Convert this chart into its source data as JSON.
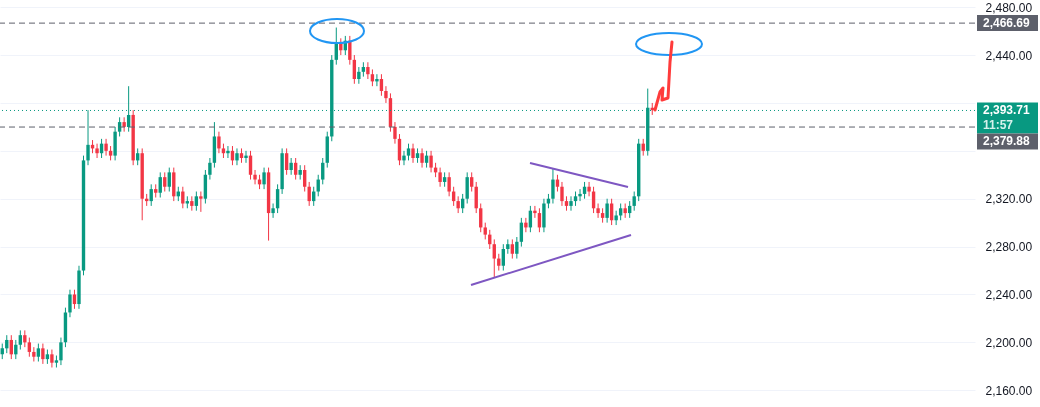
{
  "chart_data": {
    "type": "candlestick",
    "categories": [
      null,
      null,
      null,
      null,
      null,
      null,
      null,
      null,
      null,
      null,
      null,
      null,
      null,
      null,
      null,
      null,
      null,
      null,
      null,
      null,
      null,
      null,
      null,
      null,
      null,
      null,
      null,
      null,
      null,
      null,
      null,
      null,
      null,
      null,
      null,
      null,
      null,
      null,
      null,
      null,
      null,
      null,
      null,
      null,
      null,
      null,
      null,
      null,
      null,
      null,
      null,
      null,
      null,
      null,
      null,
      null,
      null,
      null,
      null,
      null,
      null,
      null,
      null,
      null,
      null,
      null,
      null,
      null,
      null,
      null,
      null,
      null,
      null,
      null,
      null,
      null,
      null,
      null,
      null,
      null,
      null,
      null,
      null,
      null,
      null,
      null,
      null,
      null,
      null,
      null,
      null,
      null,
      null,
      null,
      null,
      null,
      null,
      null,
      null,
      null,
      null,
      null,
      null,
      null,
      null,
      null,
      null,
      null,
      null,
      null,
      null,
      null,
      null,
      null,
      null,
      null,
      null,
      null,
      null,
      null,
      null,
      null,
      null,
      null,
      null,
      null,
      null,
      null,
      null,
      null,
      null,
      null,
      null,
      null,
      null,
      null,
      null,
      null,
      null,
      null,
      null,
      null,
      null,
      null,
      null,
      null,
      null,
      null,
      null,
      null,
      null,
      null,
      null,
      null,
      null,
      null,
      null,
      null,
      null,
      null,
      null,
      null,
      null,
      null,
      null,
      null,
      null,
      null,
      null,
      null,
      null,
      null,
      null,
      null,
      null,
      null,
      null,
      null,
      null,
      null,
      null,
      null,
      null,
      null,
      null,
      null,
      null,
      null,
      null,
      null,
      null,
      null,
      null,
      null,
      null,
      null,
      null,
      null,
      null,
      null,
      null,
      null,
      null,
      null,
      null,
      null,
      null,
      null,
      null,
      null,
      null,
      null,
      null,
      null,
      null,
      null
    ],
    "ohlc": [
      [
        2190,
        2199,
        2186,
        2195
      ],
      [
        2195,
        2206,
        2191,
        2202
      ],
      [
        2202,
        2206,
        2186,
        2190
      ],
      [
        2190,
        2202,
        2186,
        2198
      ],
      [
        2198,
        2210,
        2194,
        2206
      ],
      [
        2206,
        2210,
        2196,
        2200
      ],
      [
        2200,
        2204,
        2188,
        2192
      ],
      [
        2192,
        2196,
        2184,
        2188
      ],
      [
        2188,
        2199,
        2184,
        2195
      ],
      [
        2195,
        2199,
        2182,
        2186
      ],
      [
        2186,
        2194,
        2182,
        2190
      ],
      [
        2190,
        2194,
        2179,
        2183
      ],
      [
        2183,
        2189,
        2179,
        2185
      ],
      [
        2185,
        2204,
        2181,
        2200
      ],
      [
        2200,
        2229,
        2196,
        2225
      ],
      [
        2225,
        2244,
        2221,
        2240
      ],
      [
        2240,
        2244,
        2228,
        2232
      ],
      [
        2232,
        2264,
        2228,
        2260
      ],
      [
        2260,
        2356,
        2256,
        2352
      ],
      [
        2352,
        2394,
        2348,
        2365
      ],
      [
        2365,
        2369,
        2358,
        2362
      ],
      [
        2362,
        2366,
        2354,
        2358
      ],
      [
        2358,
        2370,
        2354,
        2366
      ],
      [
        2366,
        2370,
        2356,
        2360
      ],
      [
        2360,
        2364,
        2352,
        2356
      ],
      [
        2356,
        2380,
        2352,
        2376
      ],
      [
        2376,
        2388,
        2372,
        2384
      ],
      [
        2384,
        2388,
        2376,
        2380
      ],
      [
        2380,
        2414,
        2376,
        2390
      ],
      [
        2390,
        2394,
        2348,
        2352
      ],
      [
        2352,
        2362,
        2348,
        2358
      ],
      [
        2358,
        2362,
        2302,
        2320
      ],
      [
        2320,
        2324,
        2314,
        2318
      ],
      [
        2318,
        2332,
        2314,
        2328
      ],
      [
        2328,
        2332,
        2321,
        2325
      ],
      [
        2325,
        2342,
        2321,
        2338
      ],
      [
        2338,
        2342,
        2326,
        2330
      ],
      [
        2330,
        2346,
        2326,
        2342
      ],
      [
        2342,
        2346,
        2318,
        2322
      ],
      [
        2322,
        2330,
        2318,
        2326
      ],
      [
        2326,
        2330,
        2312,
        2316
      ],
      [
        2316,
        2322,
        2312,
        2318
      ],
      [
        2318,
        2322,
        2310,
        2314
      ],
      [
        2314,
        2326,
        2310,
        2322
      ],
      [
        2322,
        2326,
        2309,
        2320
      ],
      [
        2320,
        2344,
        2316,
        2340
      ],
      [
        2340,
        2354,
        2336,
        2350
      ],
      [
        2350,
        2384,
        2346,
        2372
      ],
      [
        2372,
        2376,
        2358,
        2362
      ],
      [
        2362,
        2366,
        2354,
        2358
      ],
      [
        2358,
        2364,
        2354,
        2360
      ],
      [
        2360,
        2364,
        2348,
        2352
      ],
      [
        2352,
        2362,
        2348,
        2358
      ],
      [
        2358,
        2362,
        2350,
        2354
      ],
      [
        2354,
        2360,
        2350,
        2356
      ],
      [
        2356,
        2360,
        2336,
        2340
      ],
      [
        2340,
        2344,
        2332,
        2336
      ],
      [
        2336,
        2340,
        2328,
        2332
      ],
      [
        2332,
        2346,
        2328,
        2342
      ],
      [
        2342,
        2346,
        2285,
        2308
      ],
      [
        2308,
        2316,
        2304,
        2312
      ],
      [
        2312,
        2332,
        2308,
        2328
      ],
      [
        2328,
        2362,
        2324,
        2358
      ],
      [
        2358,
        2362,
        2340,
        2344
      ],
      [
        2344,
        2354,
        2340,
        2350
      ],
      [
        2350,
        2354,
        2336,
        2340
      ],
      [
        2340,
        2348,
        2336,
        2344
      ],
      [
        2344,
        2348,
        2326,
        2330
      ],
      [
        2330,
        2334,
        2314,
        2318
      ],
      [
        2318,
        2330,
        2314,
        2326
      ],
      [
        2326,
        2340,
        2322,
        2336
      ],
      [
        2336,
        2354,
        2332,
        2350
      ],
      [
        2350,
        2376,
        2346,
        2372
      ],
      [
        2372,
        2440,
        2368,
        2436
      ],
      [
        2436,
        2463,
        2432,
        2450
      ],
      [
        2450,
        2454,
        2440,
        2444
      ],
      [
        2444,
        2456,
        2440,
        2452
      ],
      [
        2452,
        2456,
        2432,
        2436
      ],
      [
        2436,
        2440,
        2416,
        2420
      ],
      [
        2420,
        2430,
        2416,
        2426
      ],
      [
        2426,
        2434,
        2422,
        2430
      ],
      [
        2430,
        2434,
        2420,
        2424
      ],
      [
        2424,
        2428,
        2414,
        2418
      ],
      [
        2418,
        2424,
        2414,
        2420
      ],
      [
        2420,
        2424,
        2406,
        2410
      ],
      [
        2410,
        2414,
        2400,
        2404
      ],
      [
        2404,
        2408,
        2376,
        2380
      ],
      [
        2380,
        2384,
        2366,
        2370
      ],
      [
        2370,
        2374,
        2348,
        2352
      ],
      [
        2352,
        2360,
        2348,
        2356
      ],
      [
        2356,
        2366,
        2352,
        2362
      ],
      [
        2362,
        2366,
        2350,
        2354
      ],
      [
        2354,
        2362,
        2350,
        2358
      ],
      [
        2358,
        2362,
        2346,
        2350
      ],
      [
        2350,
        2360,
        2346,
        2356
      ],
      [
        2356,
        2360,
        2342,
        2346
      ],
      [
        2346,
        2350,
        2338,
        2342
      ],
      [
        2342,
        2346,
        2330,
        2334
      ],
      [
        2334,
        2342,
        2330,
        2338
      ],
      [
        2338,
        2342,
        2322,
        2326
      ],
      [
        2326,
        2330,
        2314,
        2318
      ],
      [
        2318,
        2322,
        2308,
        2312
      ],
      [
        2312,
        2324,
        2308,
        2320
      ],
      [
        2320,
        2342,
        2316,
        2338
      ],
      [
        2338,
        2342,
        2326,
        2330
      ],
      [
        2330,
        2334,
        2308,
        2312
      ],
      [
        2312,
        2316,
        2292,
        2296
      ],
      [
        2296,
        2300,
        2286,
        2290
      ],
      [
        2290,
        2294,
        2278,
        2282
      ],
      [
        2282,
        2286,
        2254,
        2270
      ],
      [
        2270,
        2274,
        2260,
        2264
      ],
      [
        2264,
        2282,
        2260,
        2278
      ],
      [
        2278,
        2286,
        2274,
        2282
      ],
      [
        2282,
        2286,
        2270,
        2274
      ],
      [
        2274,
        2288,
        2270,
        2284
      ],
      [
        2284,
        2304,
        2280,
        2300
      ],
      [
        2300,
        2304,
        2292,
        2296
      ],
      [
        2296,
        2314,
        2292,
        2310
      ],
      [
        2310,
        2314,
        2304,
        2308
      ],
      [
        2308,
        2312,
        2292,
        2296
      ],
      [
        2296,
        2320,
        2292,
        2316
      ],
      [
        2316,
        2324,
        2312,
        2320
      ],
      [
        2320,
        2345,
        2316,
        2336
      ],
      [
        2336,
        2340,
        2326,
        2330
      ],
      [
        2330,
        2334,
        2314,
        2318
      ],
      [
        2318,
        2322,
        2310,
        2314
      ],
      [
        2314,
        2322,
        2310,
        2318
      ],
      [
        2318,
        2326,
        2314,
        2322
      ],
      [
        2322,
        2328,
        2318,
        2324
      ],
      [
        2324,
        2334,
        2320,
        2330
      ],
      [
        2330,
        2334,
        2322,
        2326
      ],
      [
        2326,
        2330,
        2308,
        2312
      ],
      [
        2312,
        2316,
        2304,
        2308
      ],
      [
        2308,
        2312,
        2300,
        2304
      ],
      [
        2304,
        2320,
        2300,
        2316
      ],
      [
        2316,
        2320,
        2298,
        2302
      ],
      [
        2302,
        2310,
        2298,
        2306
      ],
      [
        2306,
        2316,
        2302,
        2312
      ],
      [
        2312,
        2316,
        2304,
        2308
      ],
      [
        2308,
        2318,
        2304,
        2314
      ],
      [
        2314,
        2326,
        2310,
        2322
      ],
      [
        2322,
        2370,
        2318,
        2366
      ],
      [
        2366,
        2370,
        2356,
        2360
      ],
      [
        2360,
        2412,
        2356,
        2396
      ],
      [
        2396,
        2400,
        2390,
        2394
      ],
      null,
      null,
      null,
      null,
      null,
      null,
      null,
      null,
      null,
      null,
      null,
      null,
      null,
      null,
      null,
      null,
      null,
      null,
      null,
      null,
      null,
      null,
      null,
      null,
      null,
      null,
      null,
      null,
      null,
      null,
      null,
      null,
      null,
      null,
      null,
      null,
      null,
      null,
      null,
      null,
      null,
      null,
      null,
      null,
      null,
      null,
      null,
      null,
      null,
      null,
      null,
      null,
      null,
      null,
      null,
      null,
      null,
      null,
      null,
      null,
      null,
      null,
      null,
      null,
      null,
      null,
      null,
      null,
      null,
      null,
      null
    ],
    "colors": [
      "#089981",
      "#089981",
      "#f23645",
      "#089981",
      "#089981",
      "#f23645",
      "#f23645",
      "#f23645",
      "#089981",
      "#f23645",
      "#089981",
      "#f23645",
      "#089981",
      "#089981",
      "#089981",
      "#089981",
      "#f23645",
      "#089981",
      "#089981",
      "#089981",
      "#f23645",
      "#f23645",
      "#089981",
      "#f23645",
      "#f23645",
      "#089981",
      "#089981",
      "#f23645",
      "#089981",
      "#f23645",
      "#089981",
      "#f23645",
      "#f23645",
      "#089981",
      "#f23645",
      "#089981",
      "#f23645",
      "#089981",
      "#f23645",
      "#089981",
      "#f23645",
      "#089981",
      "#f23645",
      "#089981",
      "#f23645",
      "#089981",
      "#089981",
      "#089981",
      "#f23645",
      "#f23645",
      "#089981",
      "#f23645",
      "#089981",
      "#f23645",
      "#089981",
      "#f23645",
      "#f23645",
      "#f23645",
      "#089981",
      "#f23645",
      "#089981",
      "#089981",
      "#089981",
      "#f23645",
      "#089981",
      "#f23645",
      "#089981",
      "#f23645",
      "#f23645",
      "#089981",
      "#089981",
      "#089981",
      "#089981",
      "#089981",
      "#089981",
      "#f23645",
      "#089981",
      "#f23645",
      "#f23645",
      "#089981",
      "#089981",
      "#f23645",
      "#f23645",
      "#089981",
      "#f23645",
      "#f23645",
      "#f23645",
      "#f23645",
      "#f23645",
      "#089981",
      "#089981",
      "#f23645",
      "#089981",
      "#f23645",
      "#089981",
      "#f23645",
      "#f23645",
      "#f23645",
      "#089981",
      "#f23645",
      "#f23645",
      "#f23645",
      "#089981",
      "#089981",
      "#f23645",
      "#f23645",
      "#f23645",
      "#f23645",
      "#f23645",
      "#f23645",
      "#f23645",
      "#089981",
      "#089981",
      "#f23645",
      "#089981",
      "#089981",
      "#f23645",
      "#089981",
      "#f23645",
      "#f23645",
      "#089981",
      "#089981",
      "#089981",
      "#f23645",
      "#f23645",
      "#f23645",
      "#089981",
      "#089981",
      "#089981",
      "#089981",
      "#f23645",
      "#f23645",
      "#f23645",
      "#f23645",
      "#089981",
      "#f23645",
      "#089981",
      "#089981",
      "#f23645",
      "#089981",
      "#089981",
      "#089981",
      "#f23645",
      "#089981",
      "#f23645",
      null,
      null,
      null,
      null,
      null,
      null,
      null,
      null,
      null,
      null,
      null,
      null,
      null,
      null,
      null,
      null,
      null,
      null,
      null,
      null,
      null,
      null,
      null,
      null,
      null,
      null,
      null,
      null,
      null,
      null,
      null,
      null,
      null,
      null,
      null,
      null,
      null,
      null,
      null,
      null,
      null,
      null,
      null,
      null,
      null,
      null,
      null,
      null,
      null,
      null,
      null,
      null,
      null,
      null,
      null,
      null,
      null,
      null,
      null,
      null,
      null,
      null,
      null,
      null,
      null,
      null,
      null,
      null,
      null,
      null,
      null
    ],
    "ylim": [
      2146,
      2486
    ],
    "yticks": [
      {
        "value": 2160,
        "label": "2,160.00"
      },
      {
        "value": 2200,
        "label": "2,200.00"
      },
      {
        "value": 2240,
        "label": "2,240.00"
      },
      {
        "value": 2280,
        "label": "2,280.00"
      },
      {
        "value": 2320,
        "label": "2,320.00"
      },
      {
        "value": 2360,
        "label": null
      },
      {
        "value": 2400,
        "label": null
      },
      {
        "value": 2440,
        "label": "2,440.00"
      },
      {
        "value": 2480,
        "label": "2,480.00"
      }
    ],
    "ref_lines": [
      {
        "axis": "y",
        "value": 2466.69,
        "label": "2,466.69",
        "color": "#5d606b",
        "line_style": "dashed"
      },
      {
        "axis": "y",
        "value": 2393.71,
        "label": "2,393.71",
        "color": "#089981",
        "line_style": "dotted"
      },
      {
        "axis": "y",
        "value": 2379.88,
        "label": "2,379.88",
        "color": "#5d606b",
        "line_style": "dashed"
      }
    ],
    "annotations": [
      "11:57"
    ],
    "grid": "y",
    "tick_labels": "y"
  }
}
